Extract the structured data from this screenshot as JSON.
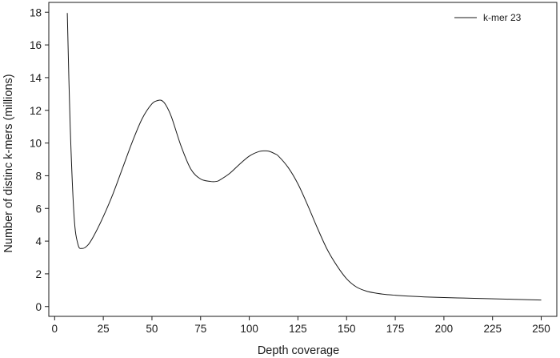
{
  "chart_data": {
    "type": "line",
    "xlabel": "Depth coverage",
    "ylabel": "Number of distinc k-mers (millions)",
    "xlim": [
      -3,
      258
    ],
    "ylim": [
      -0.6,
      18.6
    ],
    "xticks": [
      0,
      25,
      50,
      75,
      100,
      125,
      150,
      175,
      200,
      225,
      250
    ],
    "yticks": [
      0,
      2,
      4,
      6,
      8,
      10,
      12,
      14,
      16,
      18
    ],
    "grid": false,
    "legend_position": "top-right",
    "series": [
      {
        "name": "k-mer 23",
        "color": "#1a1a1a",
        "x": [
          6.5,
          8,
          10,
          12,
          14,
          17,
          20,
          25,
          30,
          35,
          40,
          45,
          50,
          53,
          55,
          57,
          60,
          65,
          70,
          75,
          80,
          83,
          85,
          90,
          95,
          100,
          105,
          108,
          110,
          113,
          115,
          120,
          125,
          130,
          135,
          140,
          145,
          150,
          155,
          160,
          165,
          170,
          175,
          180,
          190,
          200,
          210,
          220,
          230,
          240,
          250
        ],
        "y": [
          17.95,
          11.0,
          5.5,
          3.8,
          3.55,
          3.75,
          4.3,
          5.5,
          6.9,
          8.5,
          10.1,
          11.5,
          12.4,
          12.6,
          12.6,
          12.35,
          11.6,
          9.8,
          8.4,
          7.8,
          7.65,
          7.65,
          7.75,
          8.15,
          8.7,
          9.2,
          9.48,
          9.52,
          9.5,
          9.35,
          9.2,
          8.5,
          7.5,
          6.2,
          4.8,
          3.5,
          2.5,
          1.7,
          1.2,
          0.95,
          0.82,
          0.74,
          0.69,
          0.65,
          0.59,
          0.55,
          0.52,
          0.49,
          0.46,
          0.43,
          0.4
        ]
      }
    ]
  }
}
